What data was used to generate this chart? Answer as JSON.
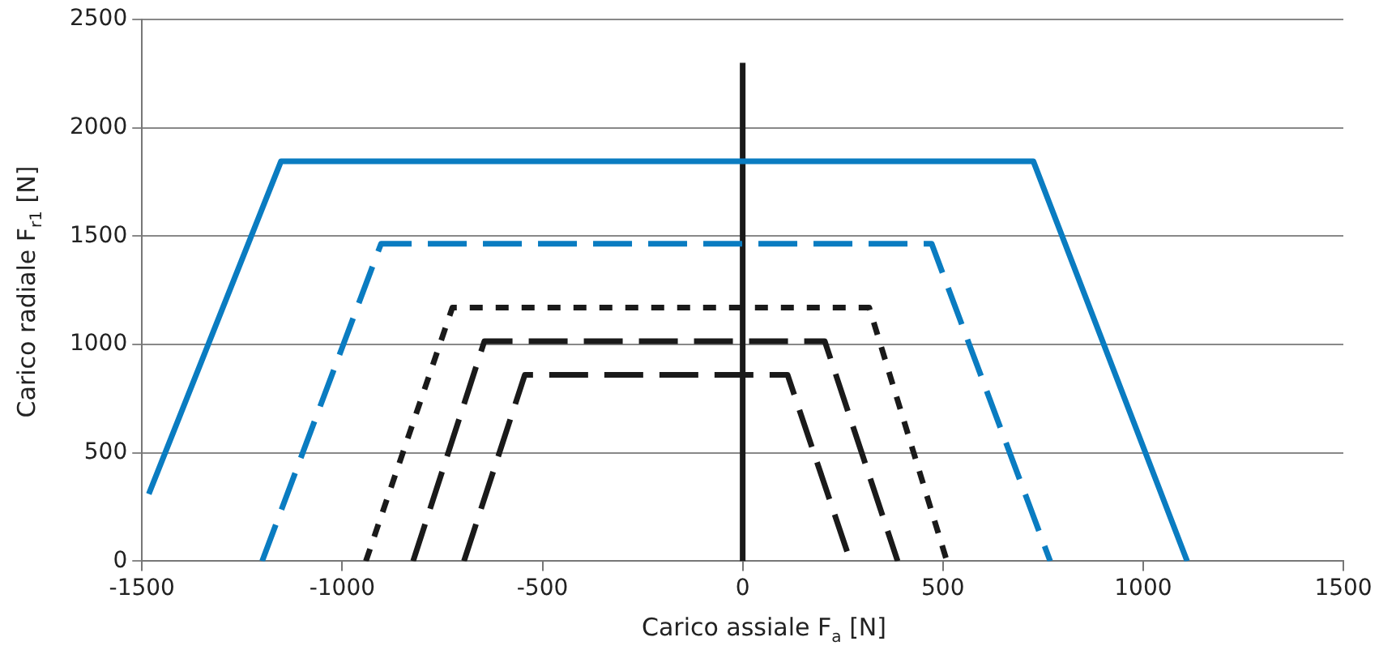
{
  "chart_data": {
    "type": "line",
    "xlabel": "Carico assiale F$_{a}$ [N]",
    "ylabel": "Carico radiale F$_{r1}$ [N]",
    "xlim": [
      -1500,
      1500
    ],
    "xticks": [
      -1500,
      -1000,
      -500,
      0,
      500,
      1000,
      1500
    ],
    "ylim": [
      0,
      2500
    ],
    "yticks": [
      0,
      500,
      1000,
      1500,
      2000,
      2500
    ],
    "grid": "y",
    "marker": "none",
    "series": [
      {
        "color": "#0a7cc1",
        "line_style": "solid",
        "x": [
          -1483,
          -1153,
          726,
          1110
        ],
        "values": [
          310,
          1845,
          1845,
          0
        ]
      },
      {
        "color": "#0a7cc1",
        "line_style": "dashed",
        "x": [
          -1200,
          -903,
          472,
          768
        ],
        "values": [
          0,
          1465,
          1465,
          0
        ]
      },
      {
        "color": "#1a1a1a",
        "line_style": "dotted",
        "x": [
          -941,
          -725,
          316,
          510
        ],
        "values": [
          0,
          1170,
          1170,
          0
        ]
      },
      {
        "color": "#1a1a1a",
        "line_style": "dashed",
        "x": [
          -823,
          -645,
          205,
          387
        ],
        "values": [
          0,
          1015,
          1015,
          0
        ]
      },
      {
        "color": "#1a1a1a",
        "line_style": "dashed",
        "x": [
          -696,
          -544,
          112,
          269
        ],
        "values": [
          0,
          860,
          860,
          0
        ]
      },
      {
        "color": "#1a1a1a",
        "line_style": "solid",
        "x": [
          0,
          0
        ],
        "values": [
          0,
          2300
        ]
      }
    ]
  }
}
